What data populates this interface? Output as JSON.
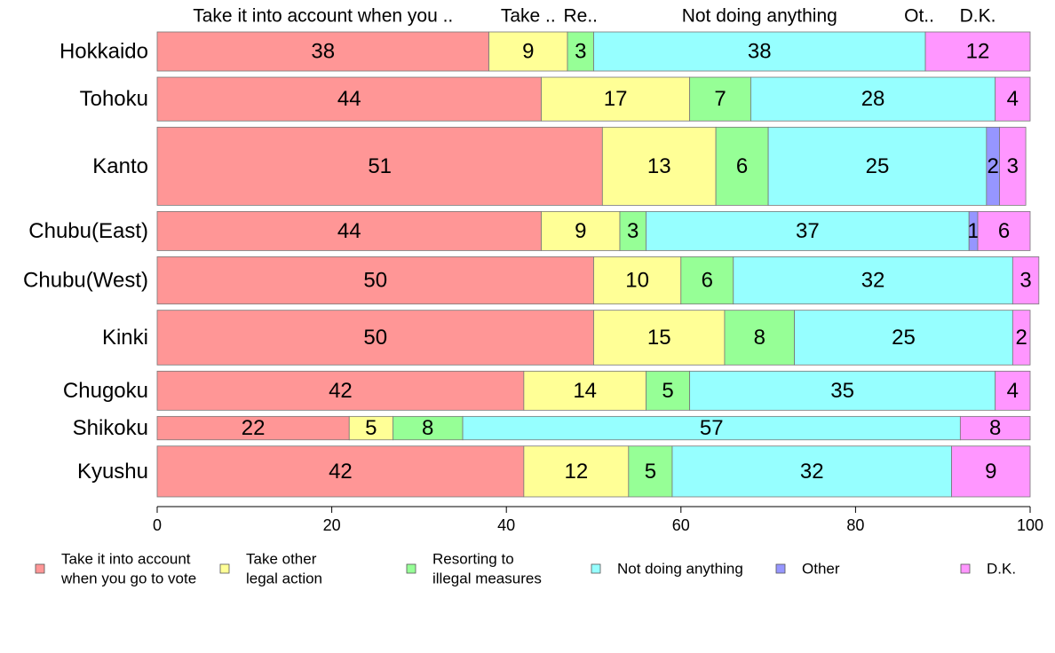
{
  "chart_data": {
    "type": "bar",
    "orientation": "horizontal",
    "stacked": true,
    "categories": [
      "Hokkaido",
      "Tohoku",
      "Kanto",
      "Chubu(East)",
      "Chubu(West)",
      "Kinki",
      "Chugoku",
      "Shikoku",
      "Kyushu"
    ],
    "category_weights": [
      1,
      1.12,
      2.0,
      1.0,
      1.21,
      1.4,
      1.0,
      0.6,
      1.3
    ],
    "series": [
      {
        "name": "Take it into account when you go to vote",
        "legend_lines": [
          "Take it into account",
          "when you go to vote"
        ],
        "top_label": "Take it into account when you ..",
        "color": "#ff9696",
        "values": [
          38,
          44,
          51,
          44,
          50,
          50,
          42,
          22,
          42
        ],
        "labels": [
          "38",
          "44",
          "51",
          "44",
          "50",
          "50",
          "42",
          "22",
          "42"
        ]
      },
      {
        "name": "Take other legal action",
        "legend_lines": [
          "Take other",
          "legal action"
        ],
        "top_label": "Take ..",
        "color": "#ffff96",
        "values": [
          9,
          17,
          13,
          9,
          10,
          15,
          14,
          5,
          12
        ],
        "labels": [
          "9",
          "17",
          "13",
          "9",
          "10",
          "15",
          "14",
          "5",
          "12"
        ]
      },
      {
        "name": "Resorting to illegal measures",
        "legend_lines": [
          "Resorting to",
          "illegal measures"
        ],
        "top_label": "Re..",
        "color": "#96ff96",
        "values": [
          3,
          7,
          6,
          3,
          6,
          8,
          5,
          8,
          5
        ],
        "labels": [
          "3",
          "7",
          "6",
          "3",
          "6",
          "8",
          "5",
          "8",
          "5"
        ]
      },
      {
        "name": "Not doing anything",
        "legend_lines": [
          "Not doing anything"
        ],
        "top_label": "Not doing anything",
        "color": "#96ffff",
        "values": [
          38,
          28,
          25,
          37,
          32,
          25,
          35,
          57,
          32
        ],
        "labels": [
          "38",
          "28",
          "25",
          "37",
          "32",
          "25",
          "35",
          "57",
          "32"
        ]
      },
      {
        "name": "Other",
        "legend_lines": [
          "Other"
        ],
        "top_label": "Ot..",
        "color": "#9696ff",
        "values": [
          0,
          0,
          1.5,
          1,
          0,
          0,
          0,
          0,
          0
        ],
        "labels": [
          "",
          "",
          "2",
          "1",
          "",
          "",
          "",
          "",
          ""
        ]
      },
      {
        "name": "D.K.",
        "legend_lines": [
          "D.K."
        ],
        "top_label": "D.K.",
        "color": "#ff96ff",
        "values": [
          12,
          4,
          3,
          6,
          3,
          2,
          4,
          8,
          9
        ],
        "labels": [
          "12",
          "4",
          "3",
          "6",
          "3",
          "2",
          "4",
          "8",
          "9"
        ]
      }
    ],
    "xlim": [
      0,
      100
    ],
    "xticks": [
      0,
      20,
      40,
      60,
      80,
      100
    ],
    "xtick_labels": [
      "0",
      "20",
      "40",
      "60",
      "80",
      "100"
    ],
    "grid": false,
    "legend_position": "bottom"
  }
}
